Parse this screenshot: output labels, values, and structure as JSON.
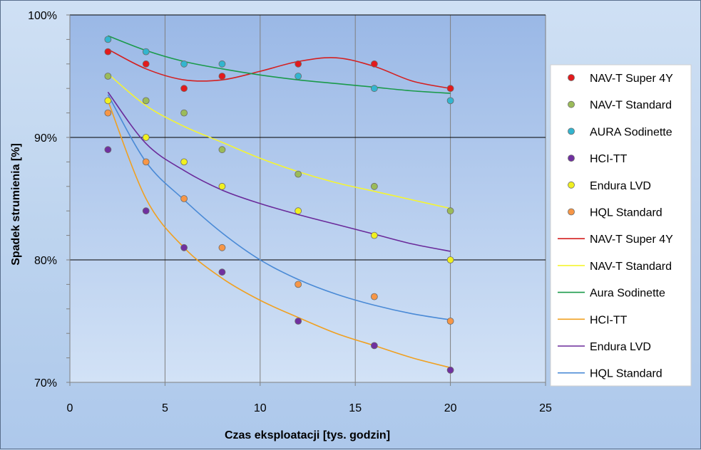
{
  "chart_data": {
    "type": "scatter",
    "xlabel": "Czas eksploatacji [tys. godzin]",
    "ylabel": "Spadek strumienia  [%]",
    "xlim": [
      0,
      25
    ],
    "ylim": [
      70,
      100
    ],
    "x_ticks": [
      0,
      5,
      10,
      15,
      20,
      25
    ],
    "y_ticks": [
      70,
      80,
      90,
      100
    ],
    "y_tick_labels": [
      "70%",
      "80%",
      "90%",
      "100%"
    ],
    "grid": "vertical and horizontal",
    "legend_position": "right",
    "x": [
      2,
      4,
      6,
      8,
      12,
      16,
      20
    ],
    "point_series": [
      {
        "name": "NAV-T Super 4Y",
        "color": "#e31a1c",
        "values": [
          97,
          96,
          94,
          95,
          96,
          96,
          94
        ]
      },
      {
        "name": "NAV-T Standard",
        "color": "#9bbb59",
        "values": [
          95,
          93,
          92,
          89,
          87,
          86,
          84
        ]
      },
      {
        "name": "AURA Sodinette",
        "color": "#33b5cf",
        "values": [
          98,
          97,
          96,
          96,
          95,
          94,
          93
        ]
      },
      {
        "name": "HCI-TT",
        "color": "#7030a0",
        "values": [
          89,
          84,
          81,
          79,
          75,
          73,
          71
        ]
      },
      {
        "name": "Endura LVD",
        "color": "#f0f020",
        "values": [
          93,
          90,
          88,
          86,
          84,
          82,
          80
        ]
      },
      {
        "name": "HQL Standard",
        "color": "#f79646",
        "values": [
          92,
          88,
          85,
          81,
          78,
          77,
          75
        ]
      }
    ],
    "trend_series": [
      {
        "name": "NAV-T Super 4Y",
        "color": "#d42020",
        "x": [
          2,
          4,
          6,
          8,
          10,
          12,
          14,
          16,
          18,
          20
        ],
        "values": [
          97.2,
          95.6,
          94.7,
          94.7,
          95.4,
          96.2,
          96.5,
          95.8,
          94.6,
          94.0
        ]
      },
      {
        "name": "NAV-T Standard",
        "color": "#f5f530",
        "x": [
          2,
          4,
          6,
          8,
          10,
          12,
          14,
          16,
          18,
          20
        ],
        "values": [
          95.2,
          92.6,
          90.9,
          89.6,
          88.3,
          87.2,
          86.3,
          85.6,
          84.9,
          84.2
        ]
      },
      {
        "name": "Aura Sodinette",
        "color": "#1a9a4a",
        "x": [
          2,
          4,
          6,
          8,
          10,
          12,
          14,
          16,
          18,
          20
        ],
        "values": [
          98.3,
          97.1,
          96.2,
          95.6,
          95.1,
          94.7,
          94.4,
          94.1,
          93.8,
          93.6
        ]
      },
      {
        "name": "HCI-TT",
        "color": "#f0a020",
        "x": [
          2,
          4,
          6,
          8,
          10,
          12,
          14,
          16,
          18,
          20
        ],
        "values": [
          93.0,
          85.0,
          81.0,
          78.5,
          76.7,
          75.3,
          74.0,
          73.0,
          72.0,
          71.2
        ]
      },
      {
        "name": "Endura LVD",
        "color": "#6a2a9a",
        "x": [
          2,
          4,
          6,
          8,
          10,
          12,
          14,
          16,
          18,
          20
        ],
        "values": [
          93.7,
          89.5,
          87.3,
          85.7,
          84.6,
          83.7,
          82.9,
          82.1,
          81.3,
          80.7
        ]
      },
      {
        "name": "HQL Standard",
        "color": "#4a8ad6",
        "x": [
          2,
          4,
          6,
          8,
          10,
          12,
          14,
          16,
          18,
          20
        ],
        "values": [
          93.5,
          88.0,
          84.9,
          82.2,
          80.0,
          78.4,
          77.2,
          76.3,
          75.6,
          75.1
        ]
      }
    ]
  }
}
